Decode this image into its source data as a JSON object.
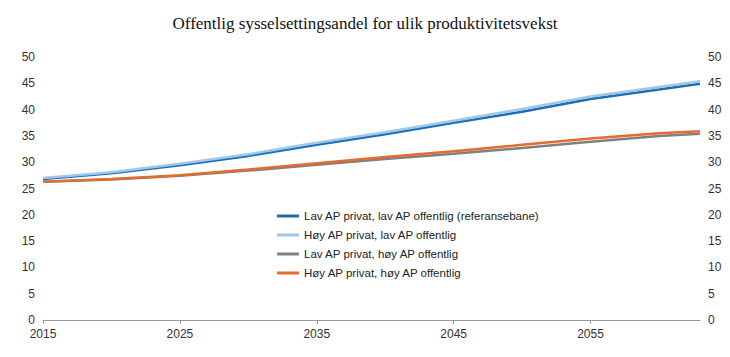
{
  "chart_data": {
    "type": "line",
    "title": "Offentlig sysselsettingsandel for ulik produktivitetsvekst",
    "x": [
      2015,
      2020,
      2025,
      2030,
      2035,
      2040,
      2045,
      2050,
      2055,
      2060,
      2063
    ],
    "series": [
      {
        "name": "Lav AP privat, lav AP offentlig (referansebane)",
        "color": "#1f6db5",
        "values": [
          26.8,
          27.9,
          29.4,
          31.2,
          33.3,
          35.3,
          37.5,
          39.6,
          42.0,
          43.8,
          44.9
        ]
      },
      {
        "name": "Høy AP privat, lav AP offentlig",
        "color": "#9cc8ea",
        "values": [
          27.0,
          28.1,
          29.7,
          31.5,
          33.7,
          35.7,
          37.9,
          40.1,
          42.5,
          44.3,
          45.4
        ]
      },
      {
        "name": "Lav AP privat, høy AP offentlig",
        "color": "#808080",
        "values": [
          26.3,
          26.7,
          27.4,
          28.4,
          29.5,
          30.6,
          31.6,
          32.7,
          33.9,
          35.0,
          35.4
        ]
      },
      {
        "name": "Høy AP privat, høy AP offentlig",
        "color": "#e46c2c",
        "values": [
          26.3,
          26.8,
          27.5,
          28.6,
          29.8,
          31.0,
          32.1,
          33.3,
          34.5,
          35.5,
          35.9
        ]
      }
    ],
    "xlim": [
      2015,
      2063
    ],
    "xticks": [
      2015,
      2025,
      2035,
      2045,
      2055
    ],
    "ylim": [
      0,
      50
    ],
    "yticks": [
      0,
      5,
      10,
      15,
      20,
      25,
      30,
      35,
      40,
      45,
      50
    ],
    "y2lim": [
      0,
      50
    ],
    "y2ticks": [
      0,
      5,
      10,
      15,
      20,
      25,
      30,
      35,
      40,
      45,
      50
    ],
    "grid": false,
    "legend": "center"
  }
}
